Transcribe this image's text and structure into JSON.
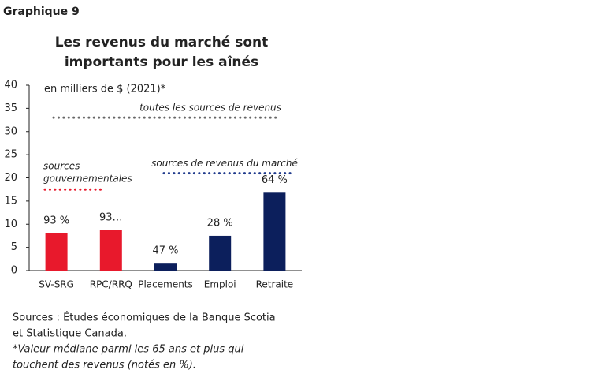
{
  "chart_data": {
    "type": "bar",
    "label": "Graphique 9",
    "title": [
      "Les revenus du marché sont",
      "importants pour les aînés"
    ],
    "subtitle": "en milliers de $ (2021)*",
    "categories": [
      "SV-SRG",
      "RPC/RRQ",
      "Placements",
      "Emploi",
      "Retraite"
    ],
    "values": [
      8,
      8.7,
      1.5,
      7.5,
      16.8
    ],
    "colors": [
      "#e8192c",
      "#e8192c",
      "#0c1f5c",
      "#0c1f5c",
      "#0c1f5c"
    ],
    "bar_notes": [
      "93 %",
      "93…",
      "47 %",
      "28 %",
      "64 %"
    ],
    "ylim": [
      0,
      40
    ],
    "yticks": [
      0,
      5,
      10,
      15,
      20,
      25,
      30,
      35,
      40
    ],
    "reference_lines": [
      {
        "label": "toutes les sources de revenus",
        "value": 33,
        "color": "#666666"
      },
      {
        "label": "sources de revenus du marché",
        "value": 21,
        "color": "#1f3a8c"
      },
      {
        "label": [
          "sources",
          "gouvernementales"
        ],
        "value": 17.5,
        "color": "#e8192c"
      }
    ],
    "sources": [
      "Sources : Études économiques de la Banque Scotia",
      "et Statistique Canada."
    ],
    "footnote": [
      "*Valeur médiane parmi les 65 ans et plus qui",
      "touchent des revenus (notés en %)."
    ]
  }
}
